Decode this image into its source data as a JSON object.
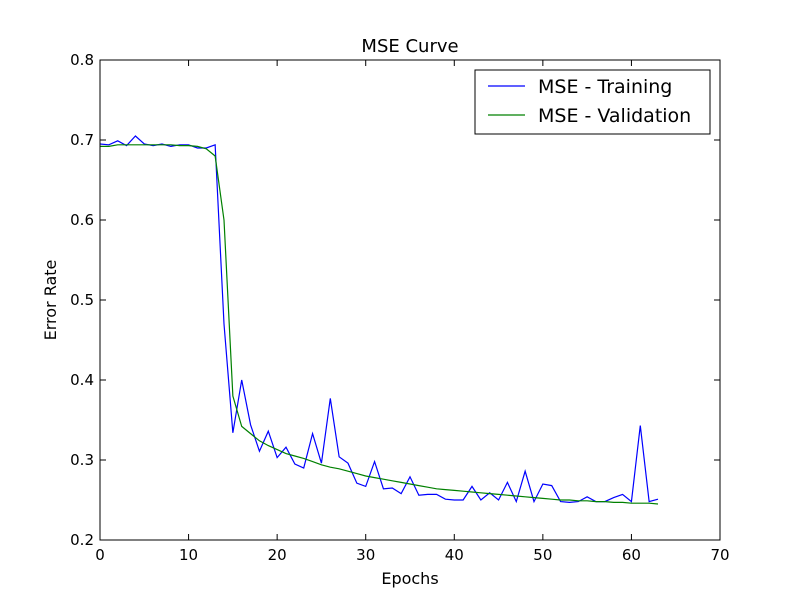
{
  "chart_data": {
    "type": "line",
    "title": "MSE Curve",
    "xlabel": "Epochs",
    "ylabel": "Error Rate",
    "xlim": [
      0,
      70
    ],
    "ylim": [
      0.2,
      0.8
    ],
    "xticks": [
      "0",
      "10",
      "20",
      "30",
      "40",
      "50",
      "60",
      "70"
    ],
    "yticks": [
      "0.2",
      "0.3",
      "0.4",
      "0.5",
      "0.6",
      "0.7",
      "0.8"
    ],
    "grid": false,
    "legend_position": "top-right",
    "x": [
      0,
      1,
      2,
      3,
      4,
      5,
      6,
      7,
      8,
      9,
      10,
      11,
      12,
      13,
      14,
      15,
      16,
      17,
      18,
      19,
      20,
      21,
      22,
      23,
      24,
      25,
      26,
      27,
      28,
      29,
      30,
      31,
      32,
      33,
      34,
      35,
      36,
      37,
      38,
      39,
      40,
      41,
      42,
      43,
      44,
      45,
      46,
      47,
      48,
      49,
      50,
      51,
      52,
      53,
      54,
      55,
      56,
      57,
      58,
      59,
      60,
      61,
      62,
      63
    ],
    "series": [
      {
        "name": "MSE - Training",
        "color": "#0000ff",
        "values": [
          0.695,
          0.694,
          0.699,
          0.693,
          0.705,
          0.695,
          0.693,
          0.695,
          0.692,
          0.694,
          0.694,
          0.69,
          0.69,
          0.694,
          0.47,
          0.334,
          0.4,
          0.344,
          0.311,
          0.336,
          0.303,
          0.316,
          0.295,
          0.29,
          0.333,
          0.296,
          0.377,
          0.304,
          0.296,
          0.271,
          0.267,
          0.298,
          0.264,
          0.265,
          0.258,
          0.279,
          0.256,
          0.257,
          0.257,
          0.251,
          0.25,
          0.25,
          0.267,
          0.25,
          0.259,
          0.25,
          0.272,
          0.248,
          0.286,
          0.248,
          0.27,
          0.268,
          0.248,
          0.247,
          0.248,
          0.254,
          0.248,
          0.248,
          0.253,
          0.257,
          0.248,
          0.343,
          0.248,
          0.251
        ]
      },
      {
        "name": "MSE - Validation",
        "color": "#008000",
        "values": [
          0.692,
          0.692,
          0.694,
          0.694,
          0.694,
          0.694,
          0.694,
          0.694,
          0.694,
          0.693,
          0.693,
          0.692,
          0.689,
          0.68,
          0.6,
          0.38,
          0.342,
          0.333,
          0.324,
          0.318,
          0.313,
          0.308,
          0.305,
          0.302,
          0.298,
          0.294,
          0.291,
          0.289,
          0.286,
          0.283,
          0.28,
          0.278,
          0.276,
          0.274,
          0.272,
          0.27,
          0.268,
          0.266,
          0.264,
          0.263,
          0.262,
          0.261,
          0.26,
          0.259,
          0.258,
          0.257,
          0.256,
          0.255,
          0.254,
          0.253,
          0.252,
          0.251,
          0.25,
          0.25,
          0.249,
          0.249,
          0.248,
          0.248,
          0.247,
          0.247,
          0.246,
          0.246,
          0.246,
          0.245
        ]
      }
    ]
  }
}
